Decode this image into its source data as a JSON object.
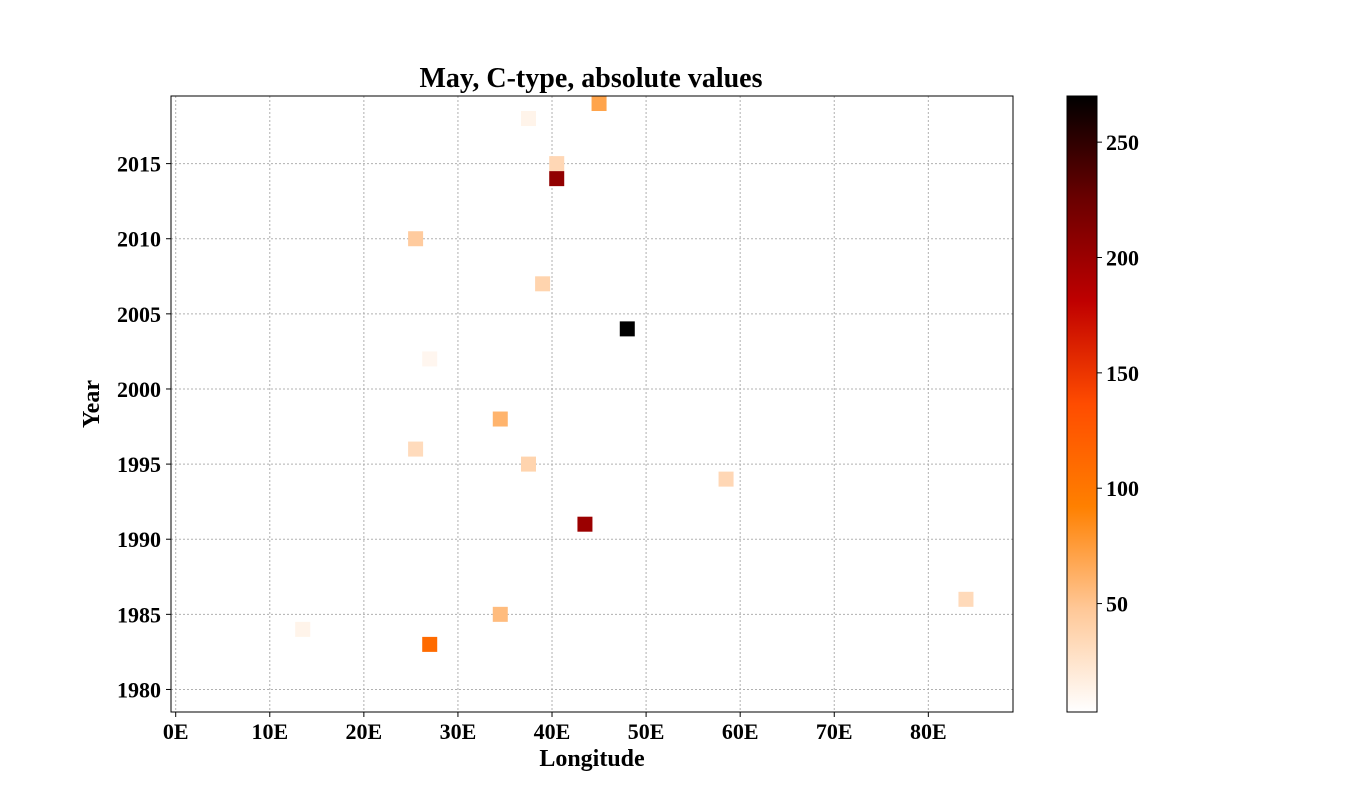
{
  "chart_data": {
    "type": "heatmap",
    "title": "May, C-type, absolute values",
    "xlabel": "Longitude",
    "ylabel": "Year",
    "xlim": [
      -0.5,
      89
    ],
    "ylim": [
      1978.5,
      2019.5
    ],
    "x_ticks": [
      {
        "value": 0,
        "label": "0E"
      },
      {
        "value": 10,
        "label": "10E"
      },
      {
        "value": 20,
        "label": "20E"
      },
      {
        "value": 30,
        "label": "30E"
      },
      {
        "value": 40,
        "label": "40E"
      },
      {
        "value": 50,
        "label": "50E"
      },
      {
        "value": 60,
        "label": "60E"
      },
      {
        "value": 70,
        "label": "70E"
      },
      {
        "value": 80,
        "label": "80E"
      }
    ],
    "y_ticks": [
      {
        "value": 1980,
        "label": "1980"
      },
      {
        "value": 1985,
        "label": "1985"
      },
      {
        "value": 1990,
        "label": "1990"
      },
      {
        "value": 1995,
        "label": "1995"
      },
      {
        "value": 2000,
        "label": "2000"
      },
      {
        "value": 2005,
        "label": "2005"
      },
      {
        "value": 2010,
        "label": "2010"
      },
      {
        "value": 2015,
        "label": "2015"
      }
    ],
    "grid": true,
    "colorbar": {
      "colormap": "gist_heat_r",
      "range": [
        3,
        270
      ],
      "ticks": [
        {
          "value": 50,
          "label": "50"
        },
        {
          "value": 100,
          "label": "100"
        },
        {
          "value": 150,
          "label": "150"
        },
        {
          "value": 200,
          "label": "200"
        },
        {
          "value": 250,
          "label": "250"
        }
      ],
      "colors": [
        "#ffffff",
        "#ffc898",
        "#ff8000",
        "#ff4c00",
        "#bf0000",
        "#6a0000",
        "#000000"
      ]
    },
    "points": [
      {
        "x": 45.0,
        "y": 2019,
        "value": 70
      },
      {
        "x": 37.5,
        "y": 2018,
        "value": 12
      },
      {
        "x": 40.5,
        "y": 2015,
        "value": 35
      },
      {
        "x": 40.5,
        "y": 2014,
        "value": 205
      },
      {
        "x": 25.5,
        "y": 2010,
        "value": 45
      },
      {
        "x": 39.0,
        "y": 2007,
        "value": 38
      },
      {
        "x": 48.0,
        "y": 2004,
        "value": 270
      },
      {
        "x": 27.0,
        "y": 2002,
        "value": 10
      },
      {
        "x": 34.5,
        "y": 1998,
        "value": 60
      },
      {
        "x": 25.5,
        "y": 1996,
        "value": 32
      },
      {
        "x": 37.5,
        "y": 1995,
        "value": 38
      },
      {
        "x": 58.5,
        "y": 1994,
        "value": 35
      },
      {
        "x": 43.5,
        "y": 1991,
        "value": 200
      },
      {
        "x": 84.0,
        "y": 1986,
        "value": 33
      },
      {
        "x": 34.5,
        "y": 1985,
        "value": 55
      },
      {
        "x": 13.5,
        "y": 1984,
        "value": 12
      },
      {
        "x": 27.0,
        "y": 1983,
        "value": 110
      }
    ]
  }
}
